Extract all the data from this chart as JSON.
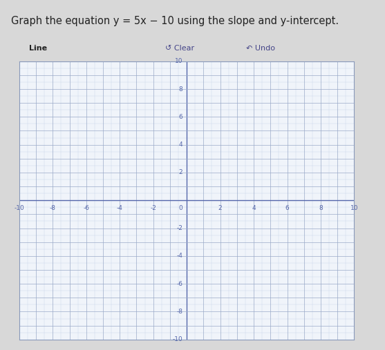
{
  "title": "Graph the equation y = 5x − 10 using the slope and y-intercept.",
  "toolbar_label": "Line",
  "toolbar_clear": "Clear",
  "toolbar_undo": "Undo",
  "slope": 5,
  "y_intercept": -10,
  "x_range": [
    -10,
    10
  ],
  "y_range": [
    -10,
    10
  ],
  "axis_ticks": [
    -10,
    -8,
    -6,
    -4,
    -2,
    0,
    2,
    4,
    6,
    8,
    10
  ],
  "grid_minor_color": "#c8d4e8",
  "grid_major_color": "#9aaac8",
  "grid_bg_color": "#f0f4fa",
  "axis_color": "#5566aa",
  "tick_label_color": "#5566aa",
  "outer_bg_color": "#d8d8d8",
  "toolbar_bg_color": "#ccd4e4",
  "title_color": "#222222",
  "title_fontsize": 10.5,
  "tick_fontsize": 6.5,
  "toolbar_fontsize": 8,
  "figsize": [
    5.57,
    5.07
  ],
  "dpi": 100
}
